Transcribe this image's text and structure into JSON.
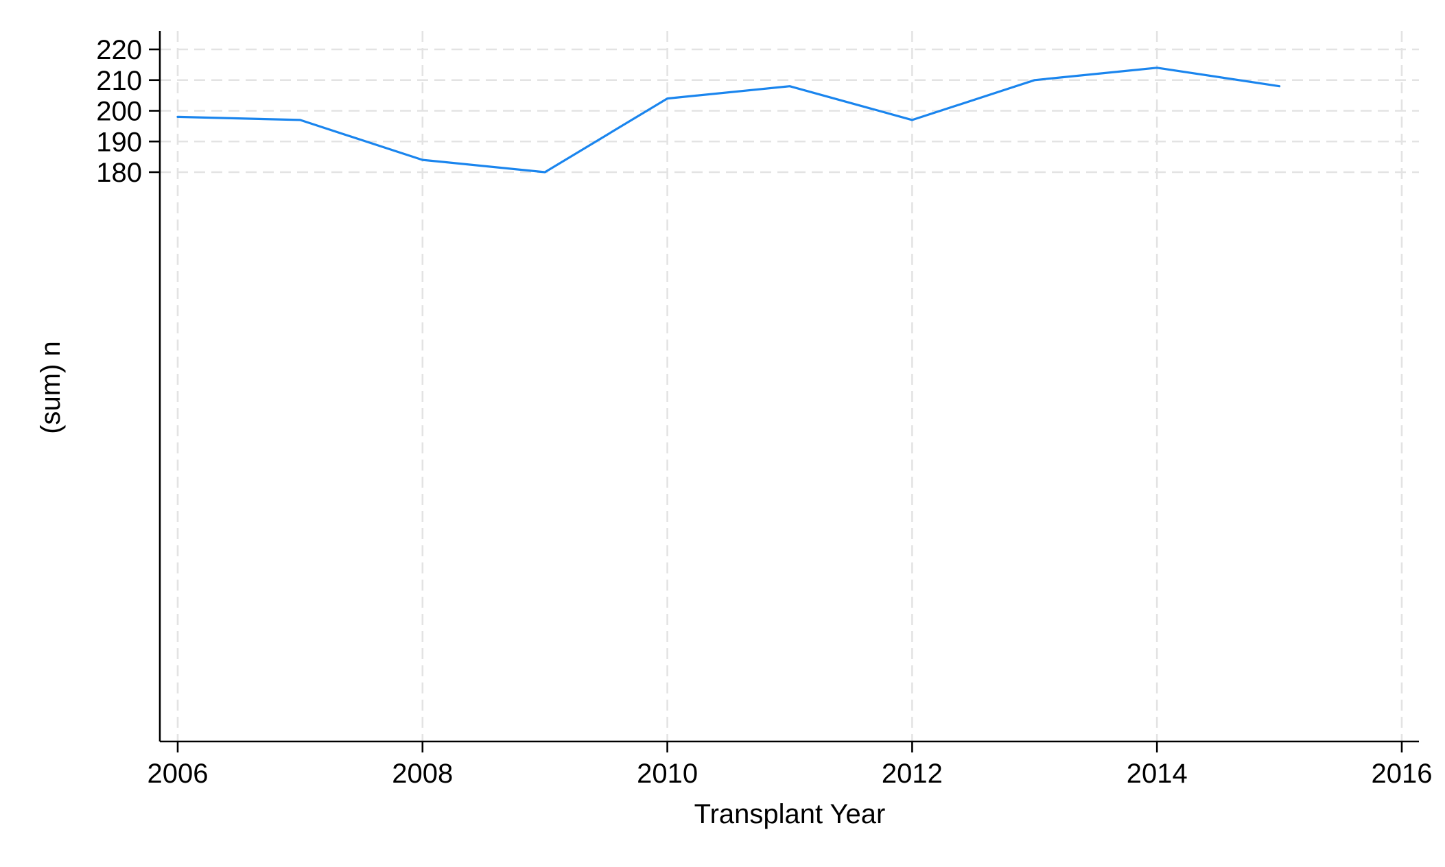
{
  "chart_data": {
    "type": "line",
    "title": "",
    "xlabel": "Transplant Year",
    "ylabel": "(sum) n",
    "xlim": [
      2006,
      2016
    ],
    "ylim": [
      180,
      220
    ],
    "xticks": [
      2006,
      2008,
      2010,
      2012,
      2014,
      2016
    ],
    "yticks": [
      180,
      190,
      200,
      210,
      220
    ],
    "grid": true,
    "legend": "none",
    "series": [
      {
        "color": "#1a85ee",
        "x": [
          2006,
          2007,
          2008,
          2009,
          2010,
          2011,
          2012,
          2013,
          2014,
          2015
        ],
        "y": [
          198,
          197,
          184,
          180,
          204,
          208,
          197,
          210,
          214,
          208
        ]
      }
    ]
  }
}
